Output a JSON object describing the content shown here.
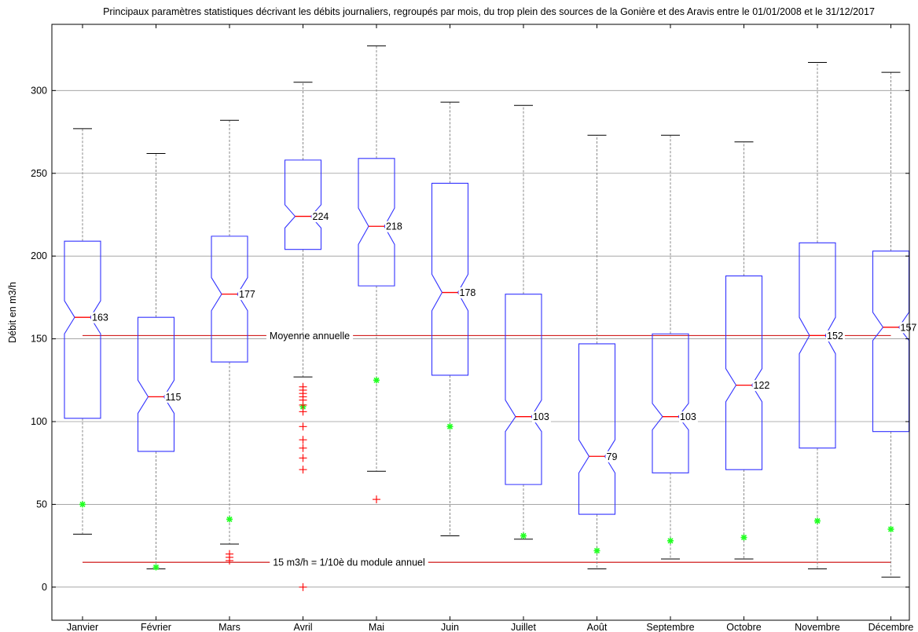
{
  "chart_data": {
    "type": "box",
    "title": "Principaux paramètres statistiques décrivant les débits journaliers, regroupés par  mois, du trop plein des sources de la Gonière et des Aravis entre le 01/01/2008 et le 31/12/2017",
    "xlabel": "",
    "ylabel": "Débit en m3/h",
    "ylim": [
      -20,
      340
    ],
    "yticks": [
      0,
      50,
      100,
      150,
      200,
      250,
      300
    ],
    "grid": true,
    "categories": [
      "Janvier",
      "Février",
      "Mars",
      "Avril",
      "Mai",
      "Juin",
      "Juillet",
      "Août",
      "Septembre",
      "Octobre",
      "Novembre",
      "Décembre"
    ],
    "boxes": [
      {
        "month": "Janvier",
        "whisker_low": 32,
        "q1": 102,
        "median": 163,
        "median_label": "163",
        "q3": 209,
        "whisker_high": 277,
        "notch_low": 153,
        "notch_high": 173,
        "marker": 50,
        "outliers": []
      },
      {
        "month": "Février",
        "whisker_low": 11,
        "q1": 82,
        "median": 115,
        "median_label": "115",
        "q3": 163,
        "whisker_high": 262,
        "notch_low": 105,
        "notch_high": 125,
        "marker": 12,
        "outliers": []
      },
      {
        "month": "Mars",
        "whisker_low": 26,
        "q1": 136,
        "median": 177,
        "median_label": "177",
        "q3": 212,
        "whisker_high": 282,
        "notch_low": 167,
        "notch_high": 187,
        "marker": 41,
        "outliers": [
          20,
          18,
          16
        ]
      },
      {
        "month": "Avril",
        "whisker_low": 127,
        "q1": 204,
        "median": 224,
        "median_label": "224",
        "q3": 258,
        "whisker_high": 305,
        "notch_low": 217,
        "notch_high": 231,
        "marker": 109,
        "outliers": [
          121,
          119,
          117,
          115,
          113,
          110,
          106,
          97,
          89,
          84,
          78,
          71,
          0
        ]
      },
      {
        "month": "Mai",
        "whisker_low": 70,
        "q1": 182,
        "median": 218,
        "median_label": "218",
        "q3": 259,
        "whisker_high": 327,
        "notch_low": 207,
        "notch_high": 229,
        "marker": 125,
        "outliers": [
          53
        ]
      },
      {
        "month": "Juin",
        "whisker_low": 31,
        "q1": 128,
        "median": 178,
        "median_label": "178",
        "q3": 244,
        "whisker_high": 293,
        "notch_low": 167,
        "notch_high": 189,
        "marker": 97,
        "outliers": []
      },
      {
        "month": "Juillet",
        "whisker_low": 29,
        "q1": 62,
        "median": 103,
        "median_label": "103",
        "q3": 177,
        "whisker_high": 291,
        "notch_low": 94,
        "notch_high": 113,
        "marker": 31,
        "outliers": []
      },
      {
        "month": "Août",
        "whisker_low": 11,
        "q1": 44,
        "median": 79,
        "median_label": "79",
        "q3": 147,
        "whisker_high": 273,
        "notch_low": 69,
        "notch_high": 89,
        "marker": 22,
        "outliers": []
      },
      {
        "month": "Septembre",
        "whisker_low": 17,
        "q1": 69,
        "median": 103,
        "median_label": "103",
        "q3": 153,
        "whisker_high": 273,
        "notch_low": 95,
        "notch_high": 111,
        "marker": 28,
        "outliers": []
      },
      {
        "month": "Octobre",
        "whisker_low": 17,
        "q1": 71,
        "median": 122,
        "median_label": "122",
        "q3": 188,
        "whisker_high": 269,
        "notch_low": 112,
        "notch_high": 132,
        "marker": 30,
        "outliers": []
      },
      {
        "month": "Novembre",
        "whisker_low": 11,
        "q1": 84,
        "median": 152,
        "median_label": "152",
        "q3": 208,
        "whisker_high": 317,
        "notch_low": 141,
        "notch_high": 163,
        "marker": 40,
        "outliers": []
      },
      {
        "month": "Décembre",
        "whisker_low": 6,
        "q1": 94,
        "median": 157,
        "median_label": "157",
        "q3": 203,
        "whisker_high": 311,
        "notch_low": 149,
        "notch_high": 166,
        "marker": 35,
        "outliers": []
      }
    ],
    "reference_lines": [
      {
        "value": 152,
        "label": "Moyenne annuelle",
        "color": "#cc0000"
      },
      {
        "value": 15,
        "label": "15 m3/h =  1/10è du module annuel",
        "color": "#cc0000"
      }
    ],
    "colors": {
      "box": "#3333ff",
      "median": "#ff0000",
      "whisker": "#888888",
      "whisker_cap": "#000000",
      "outlier": "#ff0000",
      "marker": "#22ff22",
      "grid": "#999999"
    }
  }
}
